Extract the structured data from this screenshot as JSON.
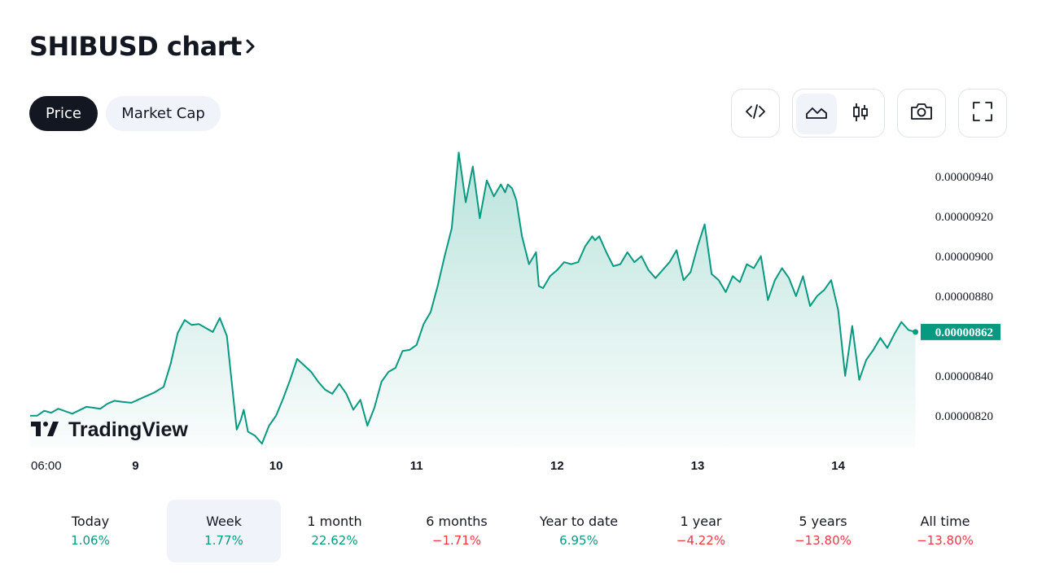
{
  "header": {
    "title": "SHIBUSD chart",
    "title_chevron_icon": "chevron-right-icon"
  },
  "tabs": [
    {
      "label": "Price",
      "active": true
    },
    {
      "label": "Market Cap",
      "active": false
    }
  ],
  "toolbar": {
    "embed_icon": "code-icon",
    "area_icon": "area-chart-icon",
    "candles_icon": "candlestick-icon",
    "snapshot_icon": "camera-icon",
    "fullscreen_icon": "fullscreen-icon",
    "active_chart_style": "area"
  },
  "colors": {
    "line": "#089981",
    "positive": "#089981",
    "negative": "#f23645",
    "dark": "#131722",
    "pill_bg": "#f0f3fa"
  },
  "watermark": "TradingView",
  "chart_data": {
    "type": "area",
    "title": "",
    "x_ticks": [
      "06:00",
      "9",
      "10",
      "11",
      "12",
      "13",
      "14"
    ],
    "y_ticks": [
      "0.00000820",
      "0.00000840",
      "0.00000880",
      "0.00000900",
      "0.00000920",
      "0.00000940"
    ],
    "current_value_label": "0.00000862",
    "ylim": [
      8.04e-06,
      9.55e-06
    ],
    "xlim": [
      0,
      6.32
    ],
    "x_unit": "days from Dec 8 06:00 label; day labels at 0.75, 1.75 ... 5.75",
    "grid": false,
    "series": [
      {
        "name": "",
        "x": [
          0,
          0.05,
          0.1,
          0.15,
          0.2,
          0.3,
          0.4,
          0.5,
          0.55,
          0.6,
          0.65,
          0.72,
          0.8,
          0.88,
          0.95,
          1.0,
          1.05,
          1.1,
          1.15,
          1.2,
          1.3,
          1.35,
          1.4,
          1.47,
          1.5,
          1.52,
          1.55,
          1.6,
          1.65,
          1.7,
          1.75,
          1.8,
          1.85,
          1.9,
          2.0,
          2.05,
          2.1,
          2.15,
          2.2,
          2.25,
          2.3,
          2.35,
          2.4,
          2.45,
          2.5,
          2.55,
          2.6,
          2.65,
          2.7,
          2.75,
          2.8,
          2.85,
          2.9,
          2.95,
          3.0,
          3.05,
          3.1,
          3.15,
          3.2,
          3.25,
          3.3,
          3.35,
          3.38,
          3.4,
          3.43,
          3.46,
          3.5,
          3.55,
          3.6,
          3.62,
          3.65,
          3.7,
          3.75,
          3.8,
          3.85,
          3.9,
          3.95,
          4.0,
          4.02,
          4.05,
          4.1,
          4.15,
          4.2,
          4.25,
          4.3,
          4.35,
          4.4,
          4.45,
          4.5,
          4.55,
          4.6,
          4.65,
          4.7,
          4.75,
          4.8,
          4.85,
          4.9,
          4.95,
          5.0,
          5.05,
          5.1,
          5.15,
          5.2,
          5.25,
          5.3,
          5.35,
          5.4,
          5.45,
          5.5,
          5.55,
          5.6,
          5.65,
          5.7,
          5.75,
          5.8,
          5.85,
          5.9,
          5.95,
          6.0,
          6.05,
          6.1,
          6.15,
          6.2,
          6.25,
          6.3
        ],
        "y": [
          8.2e-06,
          8.2e-06,
          8.225e-06,
          8.215e-06,
          8.235e-06,
          8.21e-06,
          8.245e-06,
          8.235e-06,
          8.26e-06,
          8.275e-06,
          8.27e-06,
          8.265e-06,
          8.29e-06,
          8.315e-06,
          8.345e-06,
          8.46e-06,
          8.615e-06,
          8.68e-06,
          8.655e-06,
          8.66e-06,
          8.62e-06,
          8.69e-06,
          8.6e-06,
          8.13e-06,
          8.18e-06,
          8.23e-06,
          8.12e-06,
          8.1e-06,
          8.06e-06,
          8.15e-06,
          8.2e-06,
          8.285e-06,
          8.38e-06,
          8.485e-06,
          8.42e-06,
          8.37e-06,
          8.33e-06,
          8.31e-06,
          8.36e-06,
          8.31e-06,
          8.23e-06,
          8.28e-06,
          8.15e-06,
          8.24e-06,
          8.37e-06,
          8.42e-06,
          8.44e-06,
          8.525e-06,
          8.53e-06,
          8.555e-06,
          8.66e-06,
          8.72e-06,
          8.85e-06,
          9e-06,
          9.14e-06,
          9.52e-06,
          9.27e-06,
          9.45e-06,
          9.19e-06,
          9.38e-06,
          9.3e-06,
          9.36e-06,
          9.32e-06,
          9.36e-06,
          9.34e-06,
          9.28e-06,
          9.1e-06,
          8.96e-06,
          9.02e-06,
          8.85e-06,
          8.84e-06,
          8.9e-06,
          8.93e-06,
          8.97e-06,
          8.96e-06,
          8.97e-06,
          9.05e-06,
          9.1e-06,
          9.08e-06,
          9.1e-06,
          9.02e-06,
          8.95e-06,
          8.96e-06,
          9.02e-06,
          8.97e-06,
          9e-06,
          8.93e-06,
          8.89e-06,
          8.93e-06,
          8.97e-06,
          9.03e-06,
          8.88e-06,
          8.92e-06,
          9.05e-06,
          9.16e-06,
          8.91e-06,
          8.88e-06,
          8.82e-06,
          8.9e-06,
          8.87e-06,
          8.96e-06,
          8.94e-06,
          9e-06,
          8.78e-06,
          8.88e-06,
          8.94e-06,
          8.89e-06,
          8.8e-06,
          8.9e-06,
          8.75e-06,
          8.8e-06,
          8.83e-06,
          8.88e-06,
          8.73e-06,
          8.4e-06,
          8.65e-06,
          8.38e-06,
          8.48e-06,
          8.53e-06,
          8.59e-06,
          8.54e-06,
          8.61e-06,
          8.67e-06,
          8.63e-06,
          8.62e-06
        ]
      }
    ]
  },
  "ranges": [
    {
      "label": "Today",
      "value": "1.06%",
      "trend": "up",
      "active": false
    },
    {
      "label": "Week",
      "value": "1.77%",
      "trend": "up",
      "active": true
    },
    {
      "label": "1 month",
      "value": "22.62%",
      "trend": "up",
      "active": false
    },
    {
      "label": "6 months",
      "value": "−1.71%",
      "trend": "down",
      "active": false
    },
    {
      "label": "Year to date",
      "value": "6.95%",
      "trend": "up",
      "active": false
    },
    {
      "label": "1 year",
      "value": "−4.22%",
      "trend": "down",
      "active": false
    },
    {
      "label": "5 years",
      "value": "−13.80%",
      "trend": "down",
      "active": false
    },
    {
      "label": "All time",
      "value": "−13.80%",
      "trend": "down",
      "active": false
    }
  ]
}
